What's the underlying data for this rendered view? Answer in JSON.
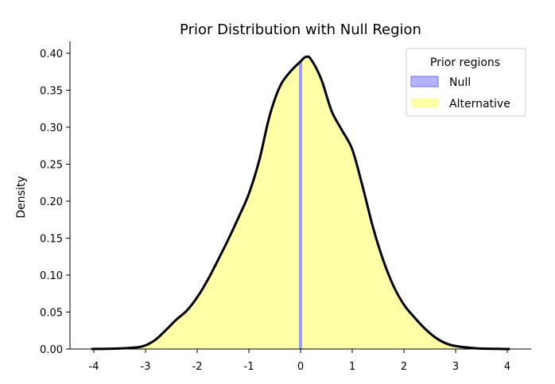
{
  "chart_data": {
    "type": "area",
    "title": "Prior Distribution with Null Region",
    "xlabel": "",
    "ylabel": "Density",
    "xlim": [
      -4.2,
      4.5
    ],
    "ylim": [
      0,
      0.4
    ],
    "x_ticks": [
      -4,
      -3,
      -2,
      -1,
      0,
      1,
      2,
      3,
      4
    ],
    "x_tick_labels": [
      "-4",
      "-3",
      "-2",
      "-1",
      "0",
      "1",
      "2",
      "3",
      "4"
    ],
    "y_ticks": [
      0,
      0.05,
      0.1,
      0.15,
      0.2,
      0.25,
      0.3,
      0.35,
      0.4
    ],
    "y_tick_labels": [
      "0.00",
      "0.05",
      "0.10",
      "0.15",
      "0.20",
      "0.25",
      "0.30",
      "0.35",
      "0.40"
    ],
    "grid": false,
    "legend": {
      "title": "Prior regions",
      "placement": "top-right",
      "entries": [
        {
          "label": "Null",
          "color": "#9999ff"
        },
        {
          "label": "Alternative",
          "color": "#ffffa8"
        }
      ]
    },
    "series": [
      {
        "curve_color": "#000000",
        "x": [
          -4.05,
          -3.6,
          -3.2,
          -3.0,
          -2.8,
          -2.6,
          -2.4,
          -2.2,
          -2.0,
          -1.8,
          -1.6,
          -1.4,
          -1.2,
          -1.0,
          -0.8,
          -0.6,
          -0.4,
          -0.2,
          0.0,
          0.1,
          0.2,
          0.4,
          0.6,
          0.8,
          1.0,
          1.2,
          1.4,
          1.6,
          1.8,
          2.0,
          2.2,
          2.4,
          2.6,
          2.8,
          3.0,
          3.4,
          3.8,
          4.05
        ],
        "y": [
          0.0,
          0.0005,
          0.002,
          0.005,
          0.013,
          0.026,
          0.04,
          0.052,
          0.07,
          0.093,
          0.12,
          0.148,
          0.178,
          0.21,
          0.255,
          0.315,
          0.355,
          0.375,
          0.389,
          0.395,
          0.392,
          0.365,
          0.322,
          0.296,
          0.27,
          0.22,
          0.165,
          0.12,
          0.085,
          0.06,
          0.043,
          0.028,
          0.016,
          0.008,
          0.004,
          0.001,
          0.0002,
          0.0
        ]
      }
    ],
    "regions": [
      {
        "name": "Null",
        "x_range": [
          -0.03,
          0.03
        ],
        "color": "#9999ff"
      },
      {
        "name": "Alternative",
        "color": "#ffffa8"
      }
    ]
  }
}
